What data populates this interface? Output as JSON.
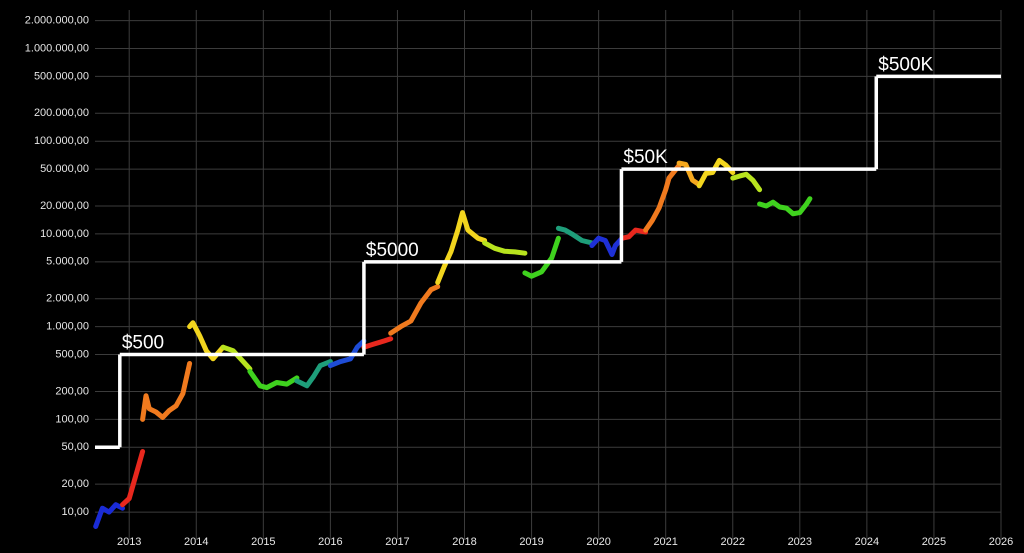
{
  "chart_data": {
    "type": "line",
    "log_scale": true,
    "grid": true,
    "xlim": [
      2012.49,
      2026
    ],
    "ylim": [
      5,
      2600000
    ],
    "xticks": [
      2013,
      2014,
      2015,
      2016,
      2017,
      2018,
      2019,
      2020,
      2021,
      2022,
      2023,
      2024,
      2025,
      2026
    ],
    "yticks": [
      {
        "value": 10,
        "label": "10,00"
      },
      {
        "value": 20,
        "label": "20,00"
      },
      {
        "value": 50,
        "label": "50,00"
      },
      {
        "value": 100,
        "label": "100,00"
      },
      {
        "value": 200,
        "label": "200,00"
      },
      {
        "value": 500,
        "label": "500,00"
      },
      {
        "value": 1000,
        "label": "1.000,00"
      },
      {
        "value": 2000,
        "label": "2.000,00"
      },
      {
        "value": 5000,
        "label": "5.000,00"
      },
      {
        "value": 10000,
        "label": "10.000,00"
      },
      {
        "value": 20000,
        "label": "20.000,00"
      },
      {
        "value": 50000,
        "label": "50.000,00"
      },
      {
        "value": 100000,
        "label": "100.000,00"
      },
      {
        "value": 200000,
        "label": "200.000,00"
      },
      {
        "value": 500000,
        "label": "500.000,00"
      },
      {
        "value": 1000000,
        "label": "1.000.000,00"
      },
      {
        "value": 2000000,
        "label": "2.000.000,00"
      }
    ],
    "series": [
      {
        "color": "#1a2bd6",
        "x": [
          2012.5,
          2012.6,
          2012.7,
          2012.8,
          2012.9
        ],
        "values": [
          7,
          11,
          10,
          12,
          11
        ]
      },
      {
        "color": "#e8281e",
        "x": [
          2012.9,
          2013.0,
          2013.1,
          2013.2
        ],
        "values": [
          12,
          14,
          25,
          45
        ]
      },
      {
        "color": "#f07a1e",
        "x": [
          2013.2,
          2013.25,
          2013.3,
          2013.4,
          2013.5,
          2013.6,
          2013.7,
          2013.8,
          2013.9
        ],
        "values": [
          100,
          180,
          130,
          120,
          105,
          125,
          140,
          190,
          400
        ]
      },
      {
        "color": "#f2d51e",
        "x": [
          2013.9,
          2013.95,
          2014.05,
          2014.15,
          2014.25,
          2014.4
        ],
        "values": [
          1000,
          1100,
          800,
          550,
          450,
          600
        ]
      },
      {
        "color": "#b8e41e",
        "x": [
          2014.4,
          2014.55,
          2014.7,
          2014.8
        ],
        "values": [
          600,
          550,
          420,
          350
        ]
      },
      {
        "color": "#3fd21e",
        "x": [
          2014.8,
          2014.95,
          2015.05,
          2015.2,
          2015.35,
          2015.5
        ],
        "values": [
          330,
          230,
          220,
          250,
          240,
          280
        ]
      },
      {
        "color": "#1e9e7a",
        "x": [
          2015.5,
          2015.65,
          2015.75,
          2015.85,
          2016.0
        ],
        "values": [
          260,
          230,
          290,
          380,
          420
        ]
      },
      {
        "color": "#1e4cd6",
        "x": [
          2016.0,
          2016.15,
          2016.3,
          2016.4,
          2016.5
        ],
        "values": [
          380,
          420,
          450,
          600,
          700
        ]
      },
      {
        "color": "#e8281e",
        "x": [
          2016.5,
          2016.65,
          2016.8,
          2016.9
        ],
        "values": [
          600,
          650,
          700,
          740
        ]
      },
      {
        "color": "#f07a1e",
        "x": [
          2016.9,
          2017.05,
          2017.2,
          2017.35,
          2017.5,
          2017.6
        ],
        "values": [
          850,
          1000,
          1150,
          1800,
          2500,
          2700
        ]
      },
      {
        "color": "#f2d51e",
        "x": [
          2017.6,
          2017.7,
          2017.8,
          2017.9,
          2017.97,
          2018.05,
          2018.2,
          2018.3
        ],
        "values": [
          3000,
          4500,
          6500,
          11000,
          17000,
          11000,
          9000,
          8500
        ]
      },
      {
        "color": "#b8e41e",
        "x": [
          2018.3,
          2018.45,
          2018.6,
          2018.75,
          2018.9
        ],
        "values": [
          8000,
          7000,
          6500,
          6400,
          6200
        ]
      },
      {
        "color": "#3fd21e",
        "x": [
          2018.9,
          2019.0,
          2019.15,
          2019.3,
          2019.4
        ],
        "values": [
          3800,
          3500,
          3900,
          5500,
          9000
        ]
      },
      {
        "color": "#1e9e7a",
        "x": [
          2019.4,
          2019.5,
          2019.6,
          2019.75,
          2019.9
        ],
        "values": [
          11500,
          11000,
          10000,
          8500,
          8000
        ]
      },
      {
        "color": "#1e30d6",
        "x": [
          2019.9,
          2020.0,
          2020.1,
          2020.2,
          2020.25,
          2020.35
        ],
        "values": [
          7500,
          9000,
          8500,
          6000,
          7500,
          9000
        ]
      },
      {
        "color": "#e8281e",
        "x": [
          2020.35,
          2020.45,
          2020.55,
          2020.7
        ],
        "values": [
          9000,
          9300,
          11000,
          10500
        ]
      },
      {
        "color": "#f07a1e",
        "x": [
          2020.7,
          2020.8,
          2020.9,
          2021.0,
          2021.05,
          2021.2
        ],
        "values": [
          11000,
          14000,
          19000,
          30000,
          40000,
          55000
        ]
      },
      {
        "color": "#f5a81e",
        "x": [
          2021.2,
          2021.3,
          2021.4,
          2021.5
        ],
        "values": [
          58000,
          56000,
          38000,
          34000
        ]
      },
      {
        "color": "#f2d51e",
        "x": [
          2021.5,
          2021.6,
          2021.7,
          2021.8,
          2021.9,
          2022.0
        ],
        "values": [
          33000,
          45000,
          46000,
          62000,
          55000,
          46000
        ]
      },
      {
        "color": "#b8e41e",
        "x": [
          2022.0,
          2022.1,
          2022.2,
          2022.3,
          2022.4
        ],
        "values": [
          40000,
          42000,
          44000,
          38000,
          30000
        ]
      },
      {
        "color": "#3fd21e",
        "x": [
          2022.4,
          2022.5,
          2022.6,
          2022.7,
          2022.8,
          2022.9,
          2023.0,
          2023.1,
          2023.15
        ],
        "values": [
          21000,
          20000,
          22000,
          19500,
          19000,
          16500,
          17000,
          21000,
          24000
        ]
      },
      {
        "type": "step",
        "color": "#ffffff",
        "x": [
          2012.49,
          2012.86,
          2016.5,
          2020.34,
          2024.14,
          2026
        ],
        "values": [
          50,
          500,
          5000,
          50000,
          500000,
          500000
        ]
      }
    ],
    "annotations": [
      {
        "text": "$500",
        "x": 2012.86,
        "y": 500
      },
      {
        "text": "$5000",
        "x": 2016.5,
        "y": 5000
      },
      {
        "text": "$50K",
        "x": 2020.34,
        "y": 50000
      },
      {
        "text": "$500K",
        "x": 2024.14,
        "y": 500000
      }
    ]
  }
}
